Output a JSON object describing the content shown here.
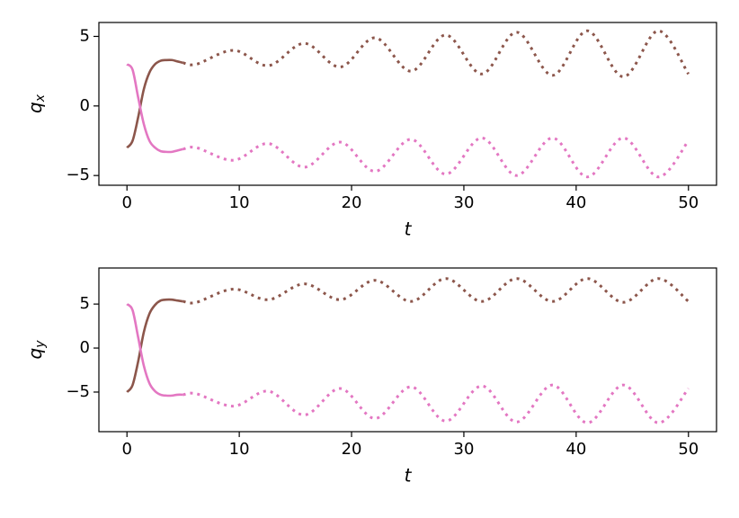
{
  "chart_data": [
    {
      "type": "line",
      "xlabel": "t",
      "ylabel": {
        "base": "q",
        "subscript": "x"
      },
      "xlim": [
        -2.5,
        52.5
      ],
      "xticks": [
        0,
        10,
        20,
        30,
        40,
        50
      ],
      "ylim": [
        -5.7,
        6.0
      ],
      "yticks": [
        {
          "value": -5,
          "label": "−5"
        },
        0,
        5
      ],
      "series": [
        {
          "color": "#8c564b",
          "style": "solid",
          "x": [
            0,
            0.5,
            1,
            1.5,
            2,
            2.5,
            3,
            3.5,
            4,
            4.5,
            5
          ],
          "values": [
            -3.0,
            -2.5,
            -0.8,
            1.2,
            2.4,
            3.0,
            3.25,
            3.3,
            3.3,
            3.2,
            3.1
          ]
        },
        {
          "color": "#e377c2",
          "style": "solid",
          "x": [
            0,
            0.5,
            1,
            1.5,
            2,
            2.5,
            3,
            3.5,
            4,
            4.5,
            5
          ],
          "values": [
            3.0,
            2.6,
            0.6,
            -1.3,
            -2.5,
            -3.0,
            -3.25,
            -3.3,
            -3.3,
            -3.2,
            -3.1
          ]
        },
        {
          "color": "#8c564b",
          "style": "dotted",
          "x": [
            5,
            6.2,
            9.5,
            12.6,
            15.8,
            19.0,
            22.1,
            25.3,
            28.4,
            31.6,
            34.7,
            37.9,
            41.0,
            44.2,
            47.3,
            50
          ],
          "values": [
            3.1,
            3.0,
            4.0,
            2.9,
            4.5,
            2.8,
            4.9,
            2.5,
            5.1,
            2.3,
            5.3,
            2.2,
            5.4,
            2.1,
            5.4,
            2.3
          ]
        },
        {
          "color": "#e377c2",
          "style": "dotted",
          "x": [
            5,
            6.2,
            9.5,
            12.6,
            15.8,
            19.0,
            22.1,
            25.3,
            28.4,
            31.6,
            34.7,
            37.9,
            41.0,
            44.2,
            47.3,
            50
          ],
          "values": [
            -3.1,
            -3.0,
            -3.9,
            -2.7,
            -4.4,
            -2.6,
            -4.7,
            -2.4,
            -4.9,
            -2.3,
            -5.0,
            -2.3,
            -5.1,
            -2.3,
            -5.1,
            -2.5
          ]
        }
      ]
    },
    {
      "type": "line",
      "xlabel": "t",
      "ylabel": {
        "base": "q",
        "subscript": "y"
      },
      "xlim": [
        -2.5,
        52.5
      ],
      "xticks": [
        0,
        10,
        20,
        30,
        40,
        50
      ],
      "ylim": [
        -9.5,
        9.1
      ],
      "yticks": [
        {
          "value": -5,
          "label": "−5"
        },
        0,
        5
      ],
      "series": [
        {
          "color": "#8c564b",
          "style": "solid",
          "x": [
            0,
            0.5,
            1,
            1.5,
            2,
            2.5,
            3,
            3.5,
            4,
            4.5,
            5
          ],
          "values": [
            -5.0,
            -4.2,
            -1.5,
            1.8,
            3.9,
            4.9,
            5.4,
            5.5,
            5.5,
            5.4,
            5.3
          ]
        },
        {
          "color": "#e377c2",
          "style": "solid",
          "x": [
            0,
            0.5,
            1,
            1.5,
            2,
            2.5,
            3,
            3.5,
            4,
            4.5,
            5
          ],
          "values": [
            5.0,
            4.3,
            1.2,
            -2.0,
            -4.0,
            -4.9,
            -5.3,
            -5.4,
            -5.4,
            -5.3,
            -5.3
          ]
        },
        {
          "color": "#8c564b",
          "style": "dotted",
          "x": [
            5,
            6.2,
            9.5,
            12.6,
            15.8,
            19.0,
            22.1,
            25.3,
            28.4,
            31.6,
            34.7,
            37.9,
            41.0,
            44.2,
            47.3,
            50
          ],
          "values": [
            5.3,
            5.2,
            6.7,
            5.5,
            7.3,
            5.5,
            7.7,
            5.3,
            7.9,
            5.3,
            7.9,
            5.3,
            7.9,
            5.2,
            7.9,
            5.3
          ]
        },
        {
          "color": "#e377c2",
          "style": "dotted",
          "x": [
            5,
            6.2,
            9.5,
            12.6,
            15.8,
            19.0,
            22.1,
            25.3,
            28.4,
            31.6,
            34.7,
            37.9,
            41.0,
            44.2,
            47.3,
            50
          ],
          "values": [
            -5.3,
            -5.2,
            -6.6,
            -4.9,
            -7.6,
            -4.6,
            -8.0,
            -4.4,
            -8.3,
            -4.3,
            -8.4,
            -4.2,
            -8.5,
            -4.2,
            -8.5,
            -4.6
          ]
        }
      ]
    }
  ]
}
